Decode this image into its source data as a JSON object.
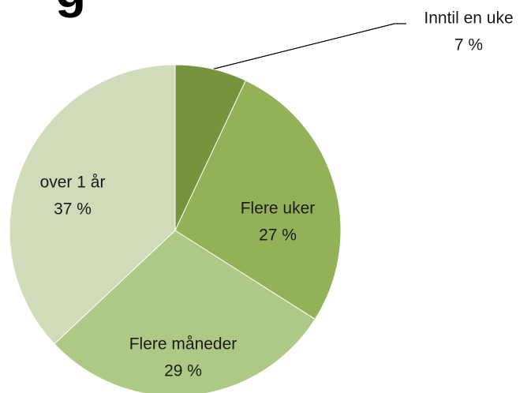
{
  "chart_data": {
    "type": "pie",
    "title": "g",
    "categories": [
      "Inntil en uke",
      "Flere uker",
      "Flere måneder",
      "over 1 år"
    ],
    "values": [
      7,
      27,
      29,
      37
    ],
    "value_labels": [
      "7 %",
      "27 %",
      "29 %",
      "37 %"
    ],
    "colors": [
      "#77933c",
      "#93b257",
      "#aec985",
      "#d0dcb9"
    ]
  }
}
